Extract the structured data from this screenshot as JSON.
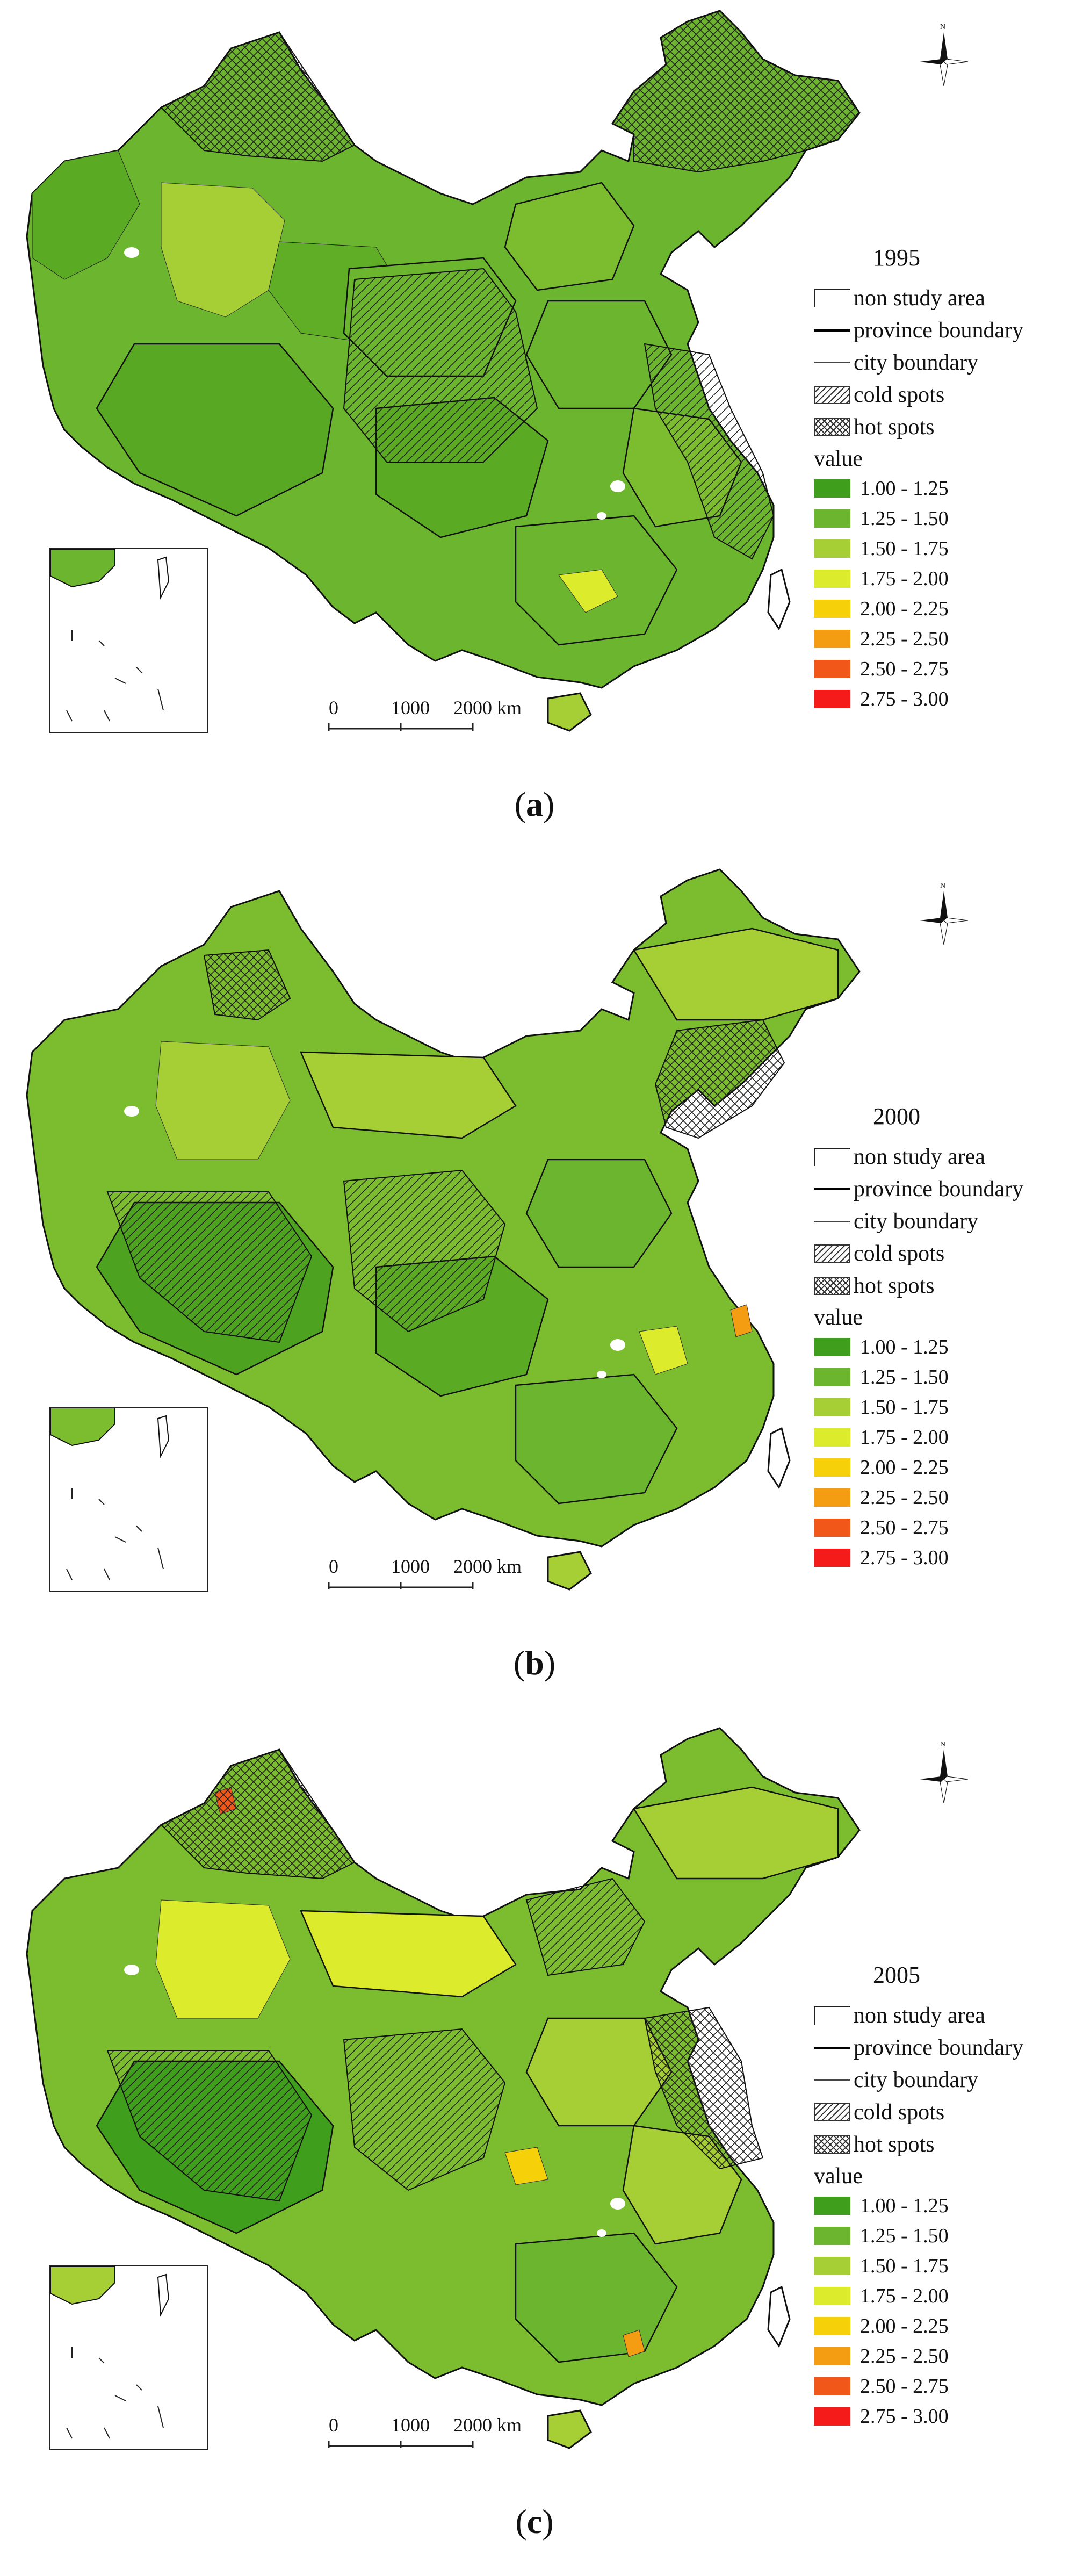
{
  "figure": {
    "panels": [
      {
        "id": "a",
        "year": "1995",
        "caption_label": "a",
        "legend_items": [
          "non study area",
          "province boundary",
          "city boundary",
          "cold spots",
          "hot spots"
        ],
        "value_title": "value",
        "value_classes": [
          {
            "label": "1.00 - 1.25",
            "color": "#3f9e1c"
          },
          {
            "label": "1.25 - 1.50",
            "color": "#6cb52e"
          },
          {
            "label": "1.50 - 1.75",
            "color": "#a5cf34"
          },
          {
            "label": "1.75 - 2.00",
            "color": "#dcec2c"
          },
          {
            "label": "2.00 - 2.25",
            "color": "#f6d10a"
          },
          {
            "label": "2.25 - 2.50",
            "color": "#f59d12"
          },
          {
            "label": "2.50 - 2.75",
            "color": "#f2571a"
          },
          {
            "label": "2.75 - 3.00",
            "color": "#f51b1b"
          }
        ],
        "scale": {
          "labels": [
            "0",
            "1000",
            "2000 km"
          ]
        }
      },
      {
        "id": "b",
        "year": "2000",
        "caption_label": "b",
        "legend_items": [
          "non study area",
          "province boundary",
          "city boundary",
          "cold spots",
          "hot spots"
        ],
        "value_title": "value",
        "value_classes": [
          {
            "label": "1.00 - 1.25",
            "color": "#3f9e1c"
          },
          {
            "label": "1.25 - 1.50",
            "color": "#6cb52e"
          },
          {
            "label": "1.50 - 1.75",
            "color": "#a5cf34"
          },
          {
            "label": "1.75 - 2.00",
            "color": "#dcec2c"
          },
          {
            "label": "2.00 - 2.25",
            "color": "#f6d10a"
          },
          {
            "label": "2.25 - 2.50",
            "color": "#f59d12"
          },
          {
            "label": "2.50 - 2.75",
            "color": "#f2571a"
          },
          {
            "label": "2.75 - 3.00",
            "color": "#f51b1b"
          }
        ],
        "scale": {
          "labels": [
            "0",
            "1000",
            "2000 km"
          ]
        }
      },
      {
        "id": "c",
        "year": "2005",
        "caption_label": "c",
        "legend_items": [
          "non study area",
          "province boundary",
          "city boundary",
          "cold spots",
          "hot spots"
        ],
        "value_title": "value",
        "value_classes": [
          {
            "label": "1.00 - 1.25",
            "color": "#3f9e1c"
          },
          {
            "label": "1.25 - 1.50",
            "color": "#6cb52e"
          },
          {
            "label": "1.50 - 1.75",
            "color": "#a5cf34"
          },
          {
            "label": "1.75 - 2.00",
            "color": "#dcec2c"
          },
          {
            "label": "2.00 - 2.25",
            "color": "#f6d10a"
          },
          {
            "label": "2.25 - 2.50",
            "color": "#f59d12"
          },
          {
            "label": "2.50 - 2.75",
            "color": "#f2571a"
          },
          {
            "label": "2.75 - 3.00",
            "color": "#f51b1b"
          }
        ],
        "scale": {
          "labels": [
            "0",
            "1000",
            "2000 km"
          ]
        }
      }
    ],
    "compass_letter": "N",
    "colors": {
      "base_green": "#6cb52e",
      "dark_green": "#3f9e1c",
      "light_green": "#a5cf34",
      "yellow_green": "#dcec2c",
      "boundary": "#000000"
    }
  }
}
